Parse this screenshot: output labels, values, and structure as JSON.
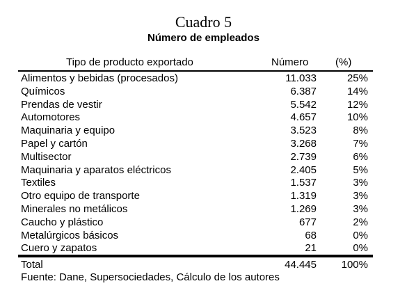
{
  "header": {
    "title": "Cuadro 5",
    "subtitle": "Número de empleados"
  },
  "table": {
    "columns": [
      "Tipo de producto exportado",
      "Número",
      "(%)"
    ],
    "rows": [
      [
        "Alimentos y bebidas (procesados)",
        "11.033",
        "25%"
      ],
      [
        "Químicos",
        "6.387",
        "14%"
      ],
      [
        "Prendas de vestir",
        "5.542",
        "12%"
      ],
      [
        "Automotores",
        "4.657",
        "10%"
      ],
      [
        "Maquinaria y equipo",
        "3.523",
        "8%"
      ],
      [
        "Papel y cartón",
        "3.268",
        "7%"
      ],
      [
        "Multisector",
        "2.739",
        "6%"
      ],
      [
        "Maquinaria y aparatos eléctricos",
        "2.405",
        "5%"
      ],
      [
        "Textiles",
        "1.537",
        "3%"
      ],
      [
        "Otro equipo de transporte",
        "1.319",
        "3%"
      ],
      [
        "Minerales no metálicos",
        "1.269",
        "3%"
      ],
      [
        "Caucho y plástico",
        "677",
        "2%"
      ],
      [
        "Metalúrgicos básicos",
        "68",
        "0%"
      ],
      [
        "Cuero y zapatos",
        "21",
        "0%"
      ]
    ],
    "total": [
      "Total",
      "44.445",
      "100%"
    ]
  },
  "footer": {
    "source": "Fuente: Dane, Supersociedades, Cálculo de los autores"
  }
}
